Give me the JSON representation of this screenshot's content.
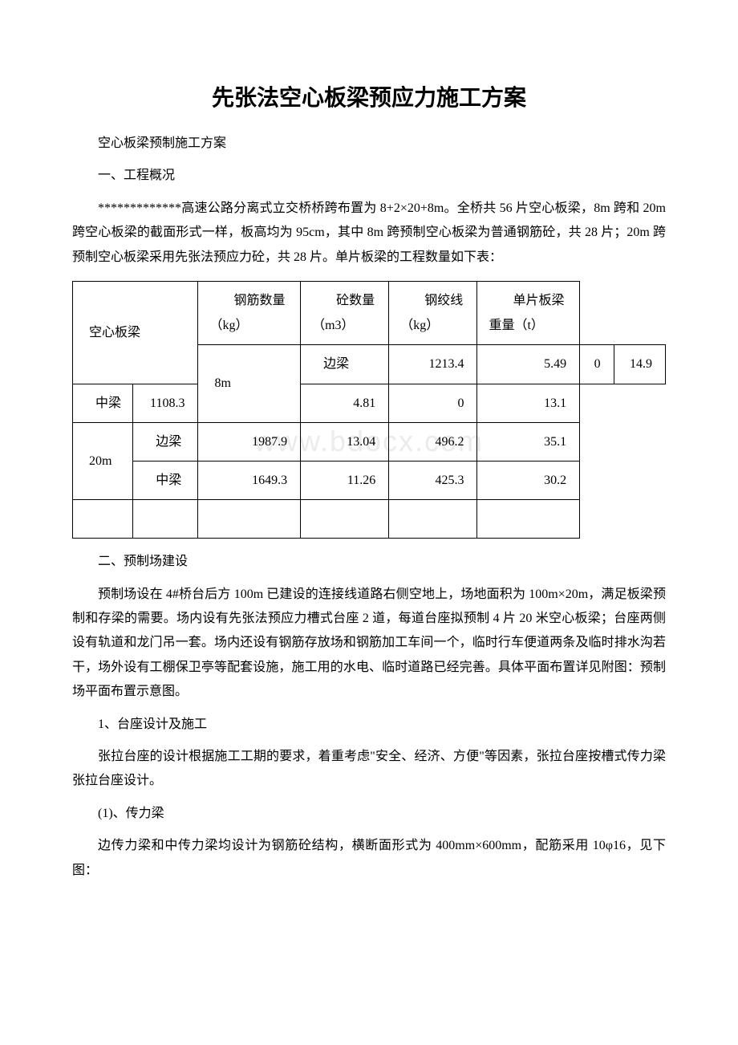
{
  "title": "先张法空心板梁预应力施工方案",
  "p1": "空心板梁预制施工方案",
  "p2": "一、工程概况",
  "p3": "*************高速公路分离式立交桥桥跨布置为 8+2×20+8m。全桥共 56 片空心板梁，8m 跨和 20m 跨空心板梁的截面形式一样，板高均为 95cm，其中 8m 跨预制空心板梁为普通钢筋砼，共 28 片；20m 跨预制空心板梁采用先张法预应力砼，共 28 片。单片板梁的工程数量如下表：",
  "table": {
    "head": {
      "col1": "空心板梁",
      "col2_top": "钢筋数量",
      "col2_bot": "（kg）",
      "col3_top": "砼数量",
      "col3_bot": "（m3）",
      "col4_top": "钢绞线",
      "col4_bot": "（kg）",
      "col5_top": "单片板梁",
      "col5_bot": "重量（t）"
    },
    "rows": [
      {
        "span": "8m",
        "type": "边梁",
        "rebar": "1213.4",
        "conc": "5.49",
        "strand": "0",
        "wt": "14.9"
      },
      {
        "span": "",
        "type": "中梁",
        "rebar": "1108.3",
        "conc": "4.81",
        "strand": "0",
        "wt": "13.1"
      },
      {
        "span": "20m",
        "type": "边梁",
        "rebar": "1987.9",
        "conc": "13.04",
        "strand": "496.2",
        "wt": "35.1"
      },
      {
        "span": "",
        "type": "中梁",
        "rebar": "1649.3",
        "conc": "11.26",
        "strand": "425.3",
        "wt": "30.2"
      }
    ]
  },
  "p4": "二、预制场建设",
  "p5": "预制场设在 4#桥台后方 100m 已建设的连接线道路右侧空地上，场地面积为 100m×20m，满足板梁预制和存梁的需要。场内设有先张法预应力槽式台座 2 道，每道台座拟预制 4 片 20 米空心板梁；台座两侧设有轨道和龙门吊一套。场内还设有钢筋存放场和钢筋加工车间一个，临时行车便道两条及临时排水沟若干，场外设有工棚保卫亭等配套设施，施工用的水电、临时道路已经完善。具体平面布置详见附图：预制场平面布置示意图。",
  "p6": "1、台座设计及施工",
  "p7": "张拉台座的设计根据施工工期的要求，着重考虑\"安全、经济、方便\"等因素，张拉台座按槽式传力梁张拉台座设计。",
  "p8": "(1)、传力梁",
  "p9": "边传力梁和中传力梁均设计为钢筋砼结构，横断面形式为 400mm×600mm，配筋采用 10φ16，见下图："
}
